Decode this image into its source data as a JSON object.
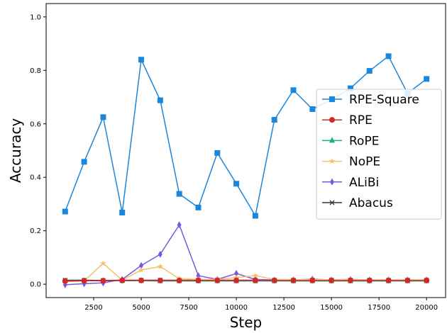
{
  "chart_data": {
    "type": "line",
    "xlabel": "Step",
    "ylabel": "Accuracy",
    "xlim": [
      0,
      21000
    ],
    "ylim": [
      -0.05,
      1.05
    ],
    "xticks": [
      2500,
      5000,
      7500,
      10000,
      12500,
      15000,
      17500,
      20000
    ],
    "yticks": [
      0.0,
      0.2,
      0.4,
      0.6,
      0.8,
      1.0
    ],
    "xtick_labels": [
      "2500",
      "5000",
      "7500",
      "10000",
      "12500",
      "15000",
      "17500",
      "20000"
    ],
    "ytick_labels": [
      "0.0",
      "0.2",
      "0.4",
      "0.6",
      "0.8",
      "1.0"
    ],
    "legend_position": "center-right",
    "x": [
      1000,
      2000,
      3000,
      4000,
      5000,
      6000,
      7000,
      8000,
      9000,
      10000,
      11000,
      12000,
      13000,
      14000,
      15000,
      16000,
      17000,
      18000,
      19000,
      20000
    ],
    "series": [
      {
        "name": "RPE-Square",
        "color": "#1a86dc",
        "marker": "square",
        "values": [
          0.272,
          0.458,
          0.625,
          0.268,
          0.84,
          0.688,
          0.338,
          0.287,
          0.491,
          0.376,
          0.256,
          0.615,
          0.726,
          0.655,
          0.69,
          0.733,
          0.798,
          0.853,
          0.714,
          0.768
        ]
      },
      {
        "name": "RPE",
        "color": "#d62728",
        "marker": "circle",
        "values": [
          0.012,
          0.013,
          0.013,
          0.014,
          0.014,
          0.014,
          0.014,
          0.014,
          0.014,
          0.014,
          0.014,
          0.014,
          0.014,
          0.014,
          0.014,
          0.014,
          0.014,
          0.014,
          0.014,
          0.014
        ]
      },
      {
        "name": "RoPE",
        "color": "#17b08a",
        "marker": "triangle",
        "values": [
          0.013,
          0.013,
          0.013,
          0.013,
          0.013,
          0.012,
          0.012,
          0.012,
          0.012,
          0.012,
          0.012,
          0.012,
          0.012,
          0.012,
          0.012,
          0.012,
          0.012,
          0.012,
          0.012,
          0.012
        ]
      },
      {
        "name": "NoPE",
        "color": "#f5c06a",
        "marker": "star",
        "values": [
          0.01,
          0.012,
          0.078,
          0.015,
          0.053,
          0.066,
          0.021,
          0.018,
          0.018,
          0.025,
          0.032,
          0.018,
          0.017,
          0.017,
          0.017,
          0.017,
          0.016,
          0.016,
          0.016,
          0.016
        ]
      },
      {
        "name": "ALiBi",
        "color": "#7b57e0",
        "marker": "diamond",
        "values": [
          -0.002,
          0.002,
          0.005,
          0.018,
          0.07,
          0.112,
          0.222,
          0.032,
          0.018,
          0.04,
          0.018,
          0.016,
          0.016,
          0.019,
          0.016,
          0.018,
          0.016,
          0.016,
          0.016,
          0.016
        ]
      },
      {
        "name": "Abacus",
        "color": "#333333",
        "marker": "x",
        "values": [
          0.015,
          0.015,
          0.014,
          0.015,
          0.015,
          0.015,
          0.015,
          0.015,
          0.015,
          0.015,
          0.015,
          0.015,
          0.015,
          0.015,
          0.015,
          0.015,
          0.015,
          0.015,
          0.015,
          0.015
        ]
      }
    ]
  }
}
